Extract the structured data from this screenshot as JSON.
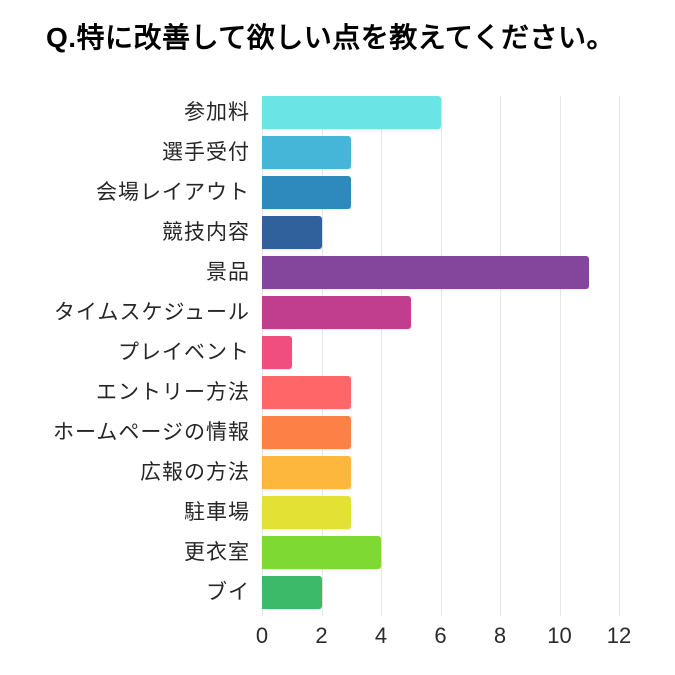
{
  "chart_data": {
    "type": "bar",
    "orientation": "horizontal",
    "title": "Q.特に改善して欲しい点を教えてください。",
    "categories": [
      "参加料",
      "選手受付",
      "会場レイアウト",
      "競技内容",
      "景品",
      "タイムスケジュール",
      "プレイベント",
      "エントリー方法",
      "ホームページの情報",
      "広報の方法",
      "駐車場",
      "更衣室",
      "ブイ"
    ],
    "values": [
      6,
      3,
      3,
      2,
      11,
      5,
      1,
      3,
      3,
      3,
      3,
      4,
      2
    ],
    "bar_colors": [
      "#6be4e6",
      "#45b5d8",
      "#2e8abc",
      "#31619d",
      "#84459c",
      "#c03e8d",
      "#f04e7e",
      "#fe6667",
      "#fd8146",
      "#fdb73d",
      "#e2e134",
      "#7ed932",
      "#3cba69"
    ],
    "xlabel": "",
    "ylabel": "",
    "xlim": [
      0,
      12
    ],
    "x_ticks": [
      0,
      2,
      4,
      6,
      8,
      10,
      12
    ],
    "grid": true,
    "legend": false,
    "gridline_color": "#e7e7e7",
    "background_color": "#ffffff",
    "title_color": "#000000",
    "label_color": "#262626",
    "tick_color": "#2b2b2b"
  }
}
